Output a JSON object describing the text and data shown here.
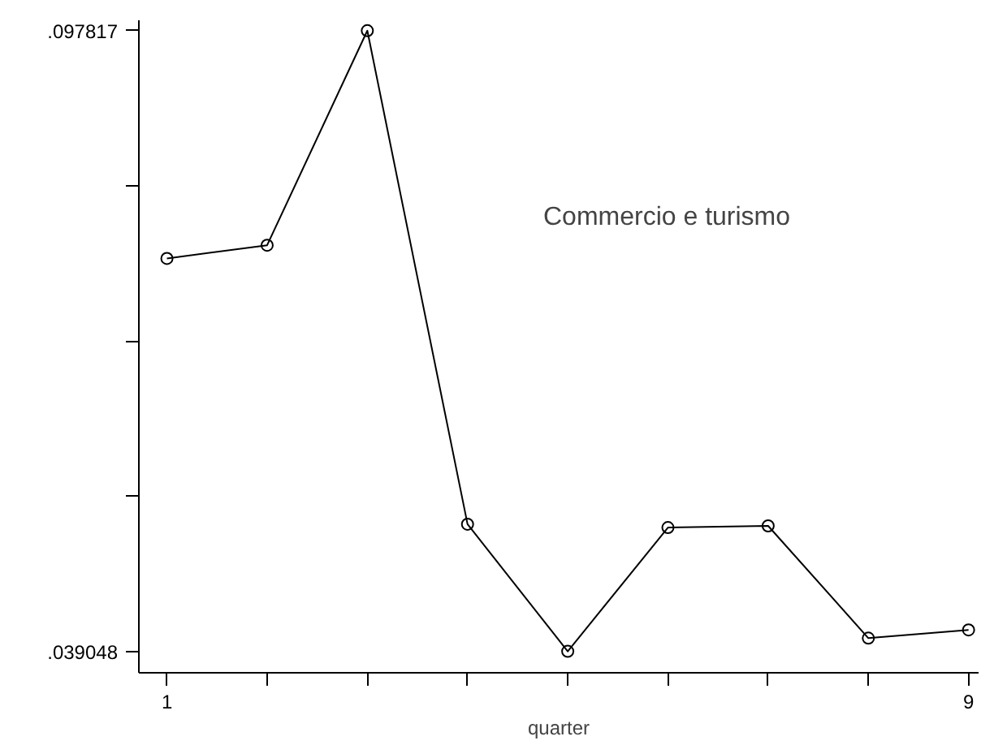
{
  "chart_data": {
    "type": "line",
    "xlabel": "quarter",
    "x": [
      1,
      2,
      3,
      4,
      5,
      6,
      7,
      8,
      9
    ],
    "series": [
      {
        "color": "#000000",
        "values": [
          0.07625,
          0.0775,
          0.097817,
          0.05109,
          0.039048,
          0.05077,
          0.05093,
          0.0403,
          0.04108
        ]
      }
    ],
    "xlim": [
      0.72,
      9.1
    ],
    "ylim": [
      0.03702,
      0.0988
    ],
    "xticks": [
      1,
      {
        "value": 2,
        "label": null
      },
      {
        "value": 3,
        "label": null
      },
      {
        "value": 4,
        "label": null
      },
      {
        "value": 5,
        "label": null
      },
      {
        "value": 6,
        "label": null
      },
      {
        "value": 7,
        "label": null
      },
      {
        "value": 8,
        "label": null
      },
      9
    ],
    "yticks": [
      {
        "value": 0.039048,
        "label": ".039048"
      },
      {
        "value": 0.05374,
        "label": null
      },
      {
        "value": 0.068433,
        "label": null
      },
      {
        "value": 0.083125,
        "label": null
      },
      {
        "value": 0.097817,
        "label": ".097817"
      }
    ],
    "annotations": [
      "Commercio e turismo"
    ],
    "marker": "circle",
    "grid": false,
    "line_style": "solid"
  }
}
